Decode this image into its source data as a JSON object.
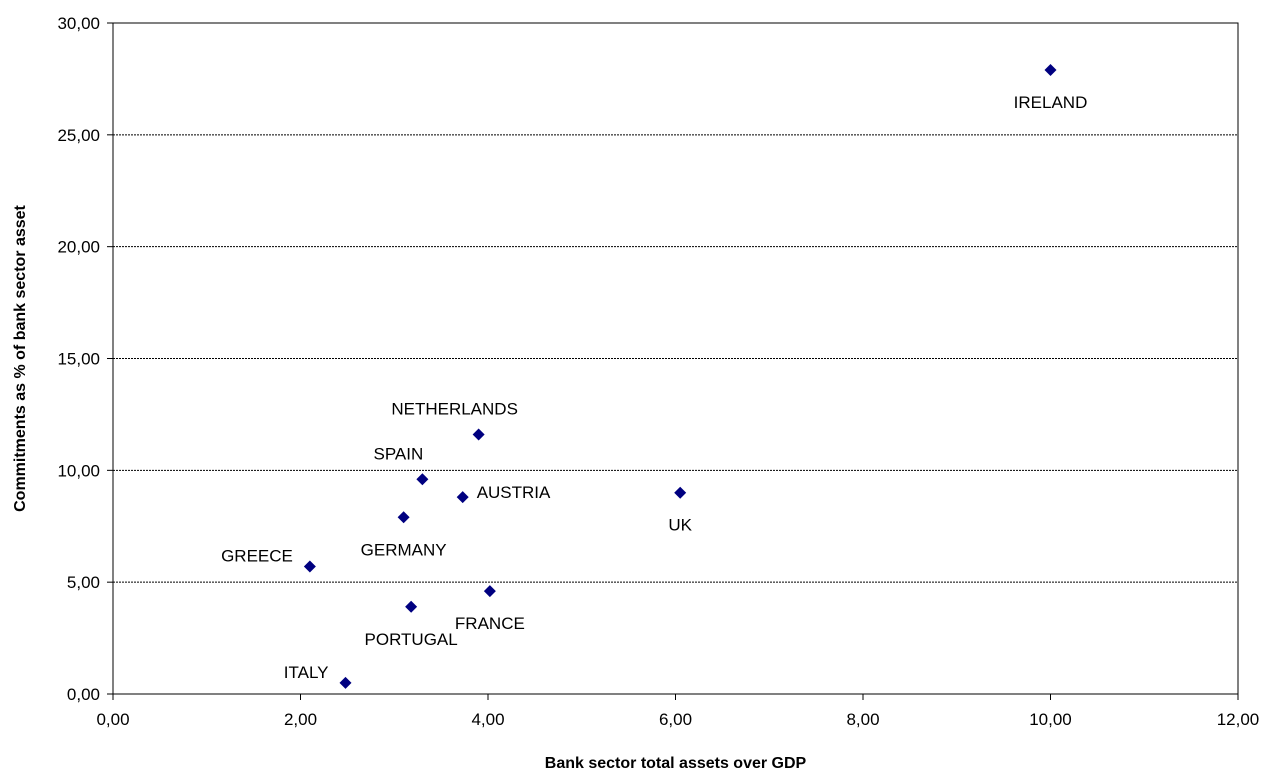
{
  "chart_data": {
    "type": "scatter",
    "title": "",
    "xlabel": "Bank sector total assets over GDP",
    "ylabel": "Commitments as % of bank sector asset",
    "xlim": [
      0,
      12
    ],
    "ylim": [
      0,
      30
    ],
    "x_ticks": [
      "0,00",
      "2,00",
      "4,00",
      "6,00",
      "8,00",
      "10,00",
      "12,00"
    ],
    "y_ticks": [
      "0,00",
      "5,00",
      "10,00",
      "15,00",
      "20,00",
      "25,00",
      "30,00"
    ],
    "grid": "horizontal dotted",
    "legend": "none",
    "marker": "diamond",
    "marker_color": "#000080",
    "points": [
      {
        "label": "IRELAND",
        "x": 10.0,
        "y": 27.9,
        "label_position": "below"
      },
      {
        "label": "NETHERLANDS",
        "x": 3.9,
        "y": 11.6,
        "label_position": "above-left"
      },
      {
        "label": "SPAIN",
        "x": 3.3,
        "y": 9.6,
        "label_position": "above-left"
      },
      {
        "label": "AUSTRIA",
        "x": 3.73,
        "y": 8.8,
        "label_position": "right"
      },
      {
        "label": "UK",
        "x": 6.05,
        "y": 9.0,
        "label_position": "below"
      },
      {
        "label": "GERMANY",
        "x": 3.1,
        "y": 7.9,
        "label_position": "below"
      },
      {
        "label": "GREECE",
        "x": 2.1,
        "y": 5.7,
        "label_position": "left"
      },
      {
        "label": "PORTUGAL",
        "x": 3.18,
        "y": 3.9,
        "label_position": "below"
      },
      {
        "label": "FRANCE",
        "x": 4.02,
        "y": 4.6,
        "label_position": "below"
      },
      {
        "label": "ITALY",
        "x": 2.48,
        "y": 0.5,
        "label_position": "left"
      }
    ]
  }
}
